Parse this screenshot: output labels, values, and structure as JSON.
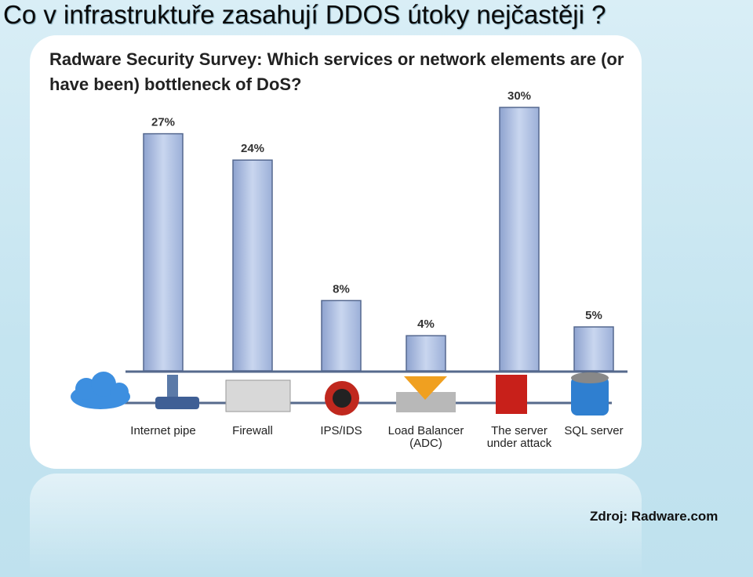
{
  "slide_title": "Co v infrastruktuře zasahují DDOS útoky nejčastěji ?",
  "source": "Zdroj: Radware.com",
  "chart_data": {
    "type": "bar",
    "title": "Radware Security Survey: Which services or network elements are (or have been) bottleneck of DoS?",
    "categories": [
      "Internet pipe",
      "Firewall",
      "IPS/IDS",
      "Load Balancer (ADC)",
      "The server under attack",
      "SQL server"
    ],
    "values": [
      27,
      24,
      8,
      4,
      30,
      5
    ],
    "value_labels": [
      "27%",
      "24%",
      "8%",
      "4%",
      "30%",
      "5%"
    ],
    "color": "#a9bde3"
  }
}
